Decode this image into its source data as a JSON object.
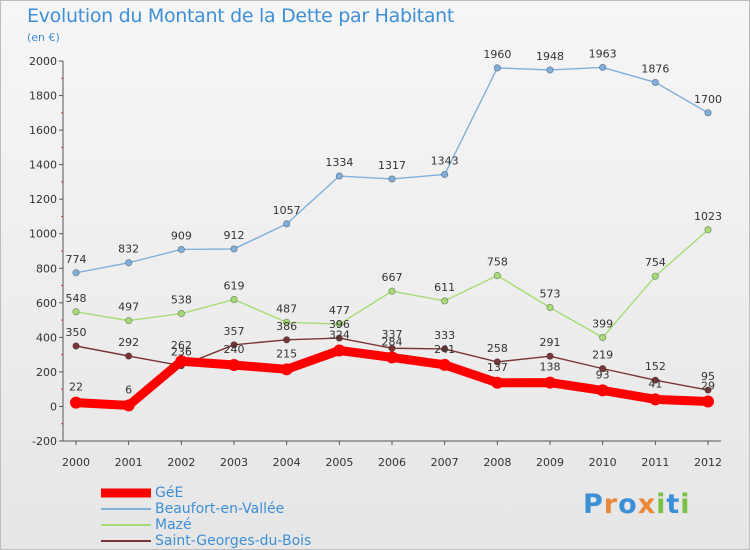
{
  "header": {
    "title": "Evolution du Montant de la Dette par Habitant",
    "unit": "(en €)"
  },
  "chart_data": {
    "type": "line",
    "title": "Evolution du Montant de la Dette par Habitant",
    "subtitle": "(en €)",
    "xlabel": "",
    "ylabel": "",
    "x": [
      "2000",
      "2001",
      "2002",
      "2003",
      "2004",
      "2005",
      "2006",
      "2007",
      "2008",
      "2009",
      "2010",
      "2011",
      "2012"
    ],
    "ylim": [
      -200,
      2000
    ],
    "yticks": [
      -200,
      0,
      200,
      400,
      600,
      800,
      1000,
      1200,
      1400,
      1600,
      1800,
      2000
    ],
    "grid": false,
    "legend_position": "bottom",
    "series": [
      {
        "name": "GéE",
        "color": "#ff0000",
        "values": [
          22,
          6,
          262,
          240,
          215,
          324,
          284,
          241,
          137,
          138,
          93,
          41,
          29
        ]
      },
      {
        "name": "Beaufort-en-Vallée",
        "color": "#7fb0dc",
        "values": [
          774,
          832,
          909,
          912,
          1057,
          1334,
          1317,
          1343,
          1960,
          1948,
          1963,
          1876,
          1700
        ]
      },
      {
        "name": "Mazé",
        "color": "#a7dc75",
        "values": [
          548,
          497,
          538,
          619,
          487,
          477,
          667,
          611,
          758,
          573,
          399,
          754,
          1023
        ]
      },
      {
        "name": "Saint-Georges-du-Bois",
        "color": "#7a3636",
        "values": [
          350,
          292,
          236,
          357,
          386,
          396,
          337,
          333,
          258,
          291,
          219,
          152,
          95
        ]
      }
    ]
  },
  "legend": {
    "items": [
      {
        "label": "GéE",
        "color": "#ff0000"
      },
      {
        "label": "Beaufort-en-Vallée",
        "color": "#7fb0dc"
      },
      {
        "label": "Mazé",
        "color": "#a7dc75"
      },
      {
        "label": "Saint-Georges-du-Bois",
        "color": "#7a3636"
      }
    ]
  },
  "logo": {
    "letters": [
      "P",
      "r",
      "o",
      "x",
      "i",
      "t",
      "i"
    ],
    "colors": [
      "#3a8fd6",
      "#e8893a",
      "#3a8fd6",
      "#e8893a",
      "#78c043",
      "#3a8fd6",
      "#78c043"
    ]
  }
}
